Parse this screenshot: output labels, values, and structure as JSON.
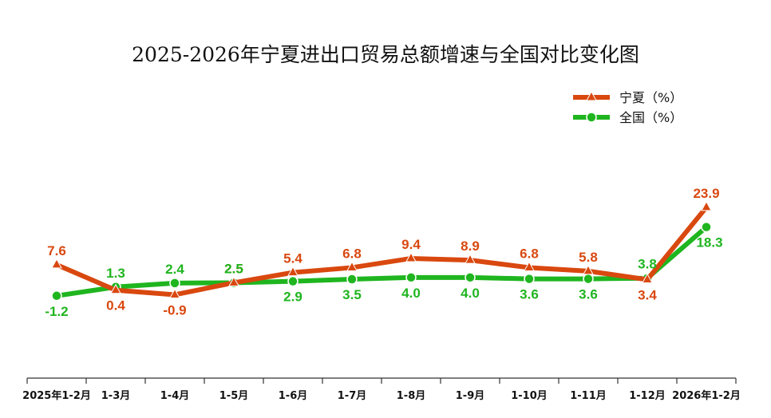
{
  "chart_data": {
    "type": "line",
    "title": "2025-2026年宁夏进出口贸易总额增速与全国对比变化图",
    "categories": [
      "2025年1-2月",
      "1-3月",
      "1-4月",
      "1-5月",
      "1-6月",
      "1-7月",
      "1-8月",
      "1-9月",
      "1-10月",
      "1-11月",
      "1-12月",
      "2026年1-2月"
    ],
    "series": [
      {
        "name": "宁夏（%）",
        "color": "#D9480F",
        "marker": "triangle",
        "values": [
          7.6,
          0.4,
          -0.9,
          2.5,
          5.4,
          6.8,
          9.4,
          8.9,
          6.8,
          5.8,
          3.4,
          23.9
        ],
        "label_text": [
          "7.6",
          "0.4",
          "-0.9",
          "2.5",
          "5.4",
          "6.8",
          "9.4",
          "8.9",
          "6.8",
          "5.8",
          "3.4",
          "23.9"
        ]
      },
      {
        "name": "全国（%）",
        "color": "#1FB51F",
        "marker": "circle",
        "values": [
          -1.2,
          1.3,
          2.4,
          2.5,
          2.9,
          3.5,
          4.0,
          4.0,
          3.6,
          3.6,
          3.8,
          18.3
        ],
        "label_text": [
          "-1.2",
          "1.3",
          "2.4",
          "2.5",
          "2.9",
          "3.5",
          "4.0",
          "4.0",
          "3.6",
          "3.6",
          "3.8",
          "18.3"
        ]
      }
    ],
    "legend_position": "top-right",
    "grid": false,
    "ylim": [
      -10,
      30
    ]
  }
}
